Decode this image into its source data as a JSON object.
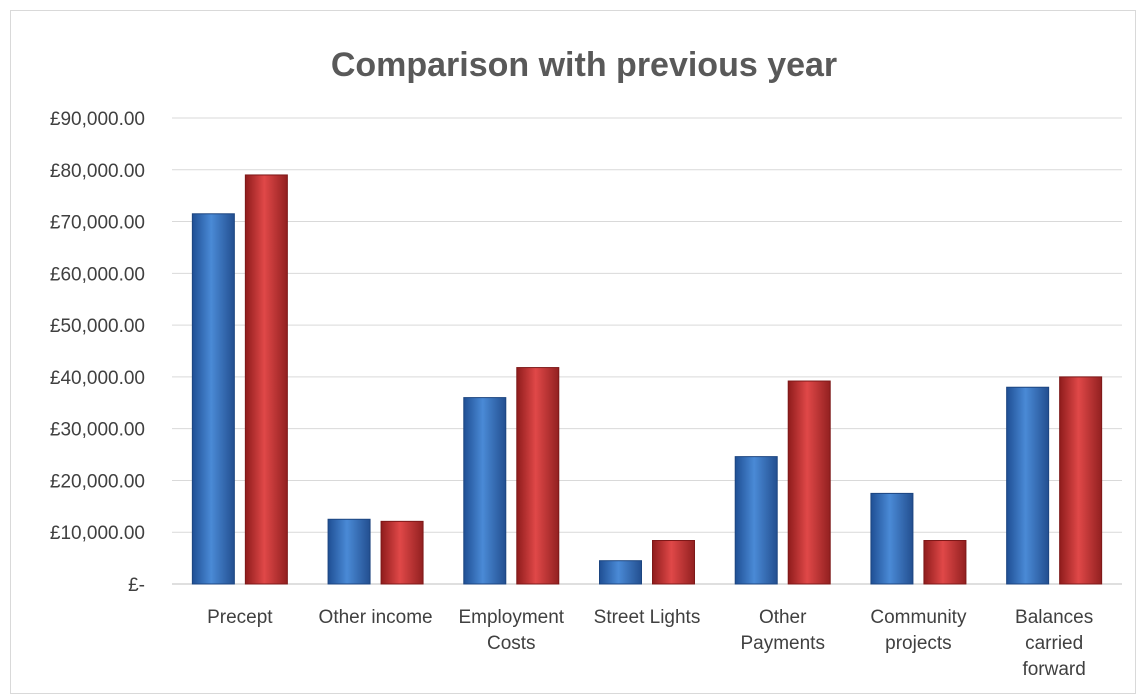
{
  "chart_data": {
    "type": "bar",
    "title": "Comparison with previous year",
    "xlabel": "",
    "ylabel": "",
    "ylim": [
      0,
      90000
    ],
    "y_ticks": [
      0,
      10000,
      20000,
      30000,
      40000,
      50000,
      60000,
      70000,
      80000,
      90000
    ],
    "y_tick_labels": [
      "£-",
      "£10,000.00",
      "£20,000.00",
      "£30,000.00",
      "£40,000.00",
      "£50,000.00",
      "£60,000.00",
      "£70,000.00",
      "£80,000.00",
      "£90,000.00"
    ],
    "grid": true,
    "legend": "none",
    "categories": [
      "Precept",
      "Other income",
      "Employment Costs",
      "Street Lights",
      "Other Payments",
      "Community projects",
      "Balances carried forward"
    ],
    "category_label_lines": [
      [
        "Precept"
      ],
      [
        "Other income"
      ],
      [
        "Employment",
        "Costs"
      ],
      [
        "Street Lights"
      ],
      [
        "Other",
        "Payments"
      ],
      [
        "Community",
        "projects"
      ],
      [
        "Balances",
        "carried",
        "forward"
      ]
    ],
    "series": [
      {
        "values": [
          71500,
          12500,
          36000,
          4500,
          24600,
          17500,
          38000
        ],
        "color": "#3a78c8"
      },
      {
        "values": [
          79000,
          12100,
          41800,
          8400,
          39200,
          8400,
          40000
        ],
        "color": "#d03a3a"
      }
    ]
  }
}
